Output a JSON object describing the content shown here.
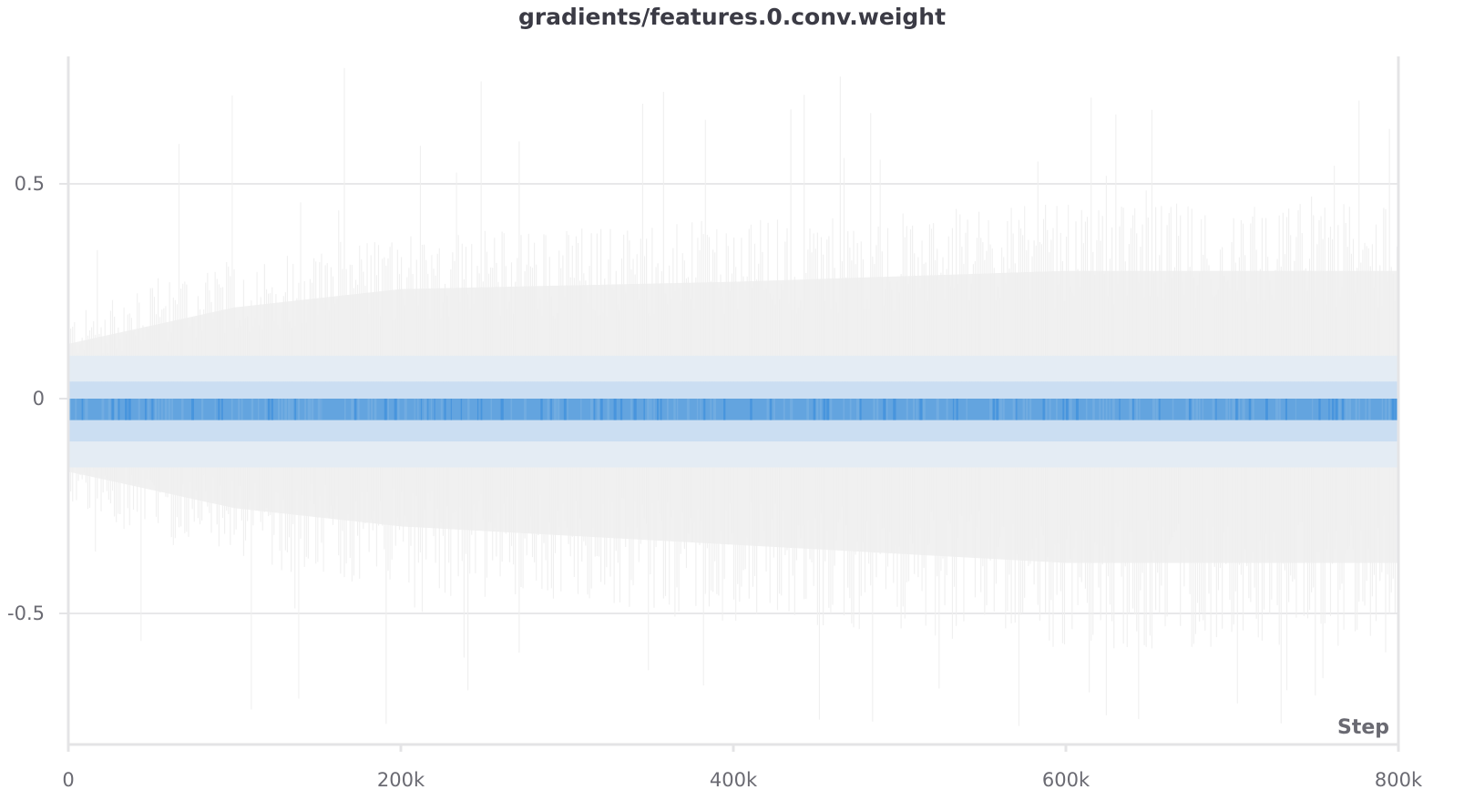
{
  "chart_data": {
    "type": "heatmap",
    "title": "gradients/features.0.conv.weight",
    "xlabel": "Step",
    "ylabel": "",
    "xlim": [
      0,
      800000
    ],
    "ylim": [
      -0.8,
      0.8
    ],
    "x_ticks": [
      {
        "value": 0,
        "label": "0"
      },
      {
        "value": 200000,
        "label": "200k"
      },
      {
        "value": 400000,
        "label": "400k"
      },
      {
        "value": 600000,
        "label": "600k"
      },
      {
        "value": 800000,
        "label": "800k"
      }
    ],
    "y_ticks": [
      {
        "value": 0.5,
        "label": "0.5"
      },
      {
        "value": 0,
        "label": "0"
      },
      {
        "value": -0.5,
        "label": "-0.5"
      }
    ],
    "grid": true,
    "colors": {
      "axis": "#e4e4e6",
      "gridline": "#e8e8ea",
      "low_density": "#eeeeee",
      "mid_density": "#c6dcf2",
      "high_density": "#4a97dc",
      "peak_density": "#2e86db"
    },
    "histogram_bins": [
      {
        "y_range": [
          -0.1,
          -0.05
        ],
        "density": 0.35
      },
      {
        "y_range": [
          -0.05,
          0.0
        ],
        "density": 1.0
      },
      {
        "y_range": [
          0.0,
          0.04
        ],
        "density": 0.4
      },
      {
        "y_range": [
          0.04,
          0.1
        ],
        "density": 0.12
      },
      {
        "y_range": [
          -0.16,
          -0.1
        ],
        "density": 0.12
      }
    ],
    "envelope": {
      "typical_max": [
        {
          "x": 0,
          "y": 0.15
        },
        {
          "x": 100000,
          "y": 0.25
        },
        {
          "x": 200000,
          "y": 0.3
        },
        {
          "x": 400000,
          "y": 0.32
        },
        {
          "x": 600000,
          "y": 0.35
        },
        {
          "x": 800000,
          "y": 0.35
        }
      ],
      "typical_min": [
        {
          "x": 0,
          "y": -0.2
        },
        {
          "x": 100000,
          "y": -0.3
        },
        {
          "x": 200000,
          "y": -0.35
        },
        {
          "x": 400000,
          "y": -0.4
        },
        {
          "x": 600000,
          "y": -0.45
        },
        {
          "x": 800000,
          "y": -0.45
        }
      ],
      "extreme_max": 0.79,
      "extreme_min": -0.77
    }
  }
}
